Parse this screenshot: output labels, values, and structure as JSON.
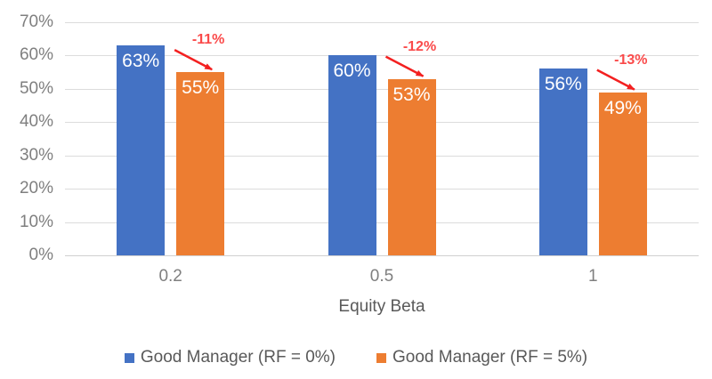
{
  "chart_data": {
    "type": "bar",
    "title": "",
    "categories": [
      "0.2",
      "0.5",
      "1"
    ],
    "xlabel": "Equity Beta",
    "ylabel": "",
    "ylim": [
      0,
      70
    ],
    "ytick_step": 10,
    "ytick_labels": [
      "0%",
      "10%",
      "20%",
      "30%",
      "40%",
      "50%",
      "60%",
      "70%"
    ],
    "grid": true,
    "legend_position": "bottom",
    "series": [
      {
        "name": "Good Manager (RF = 0%)",
        "color": "#4472C4",
        "values": [
          63,
          60,
          56
        ],
        "data_labels": [
          "63%",
          "60%",
          "56%"
        ]
      },
      {
        "name": "Good Manager (RF = 5%)",
        "color": "#ED7D31",
        "values": [
          55,
          53,
          49
        ],
        "data_labels": [
          "55%",
          "53%",
          "49%"
        ]
      }
    ],
    "annotations": [
      {
        "text": "-11%",
        "category": "0.2",
        "points_to": "Good Manager (RF = 5%)"
      },
      {
        "text": "-12%",
        "category": "0.5",
        "points_to": "Good Manager (RF = 5%)"
      },
      {
        "text": "-13%",
        "category": "1",
        "points_to": "Good Manager (RF = 5%)"
      }
    ]
  },
  "colors": {
    "series1": "#4472C4",
    "series2": "#ED7D31",
    "gridline": "#DCDCDC",
    "axis_line": "#D0D0D0",
    "tick_text": "#7F7F7F",
    "axis_title_text": "#595959",
    "legend_text": "#595959",
    "bar_label_text": "#FFFFFF",
    "annotation_text": "#FA4A4A",
    "annotation_arrow": "#F32020",
    "background": "#FFFFFF"
  }
}
